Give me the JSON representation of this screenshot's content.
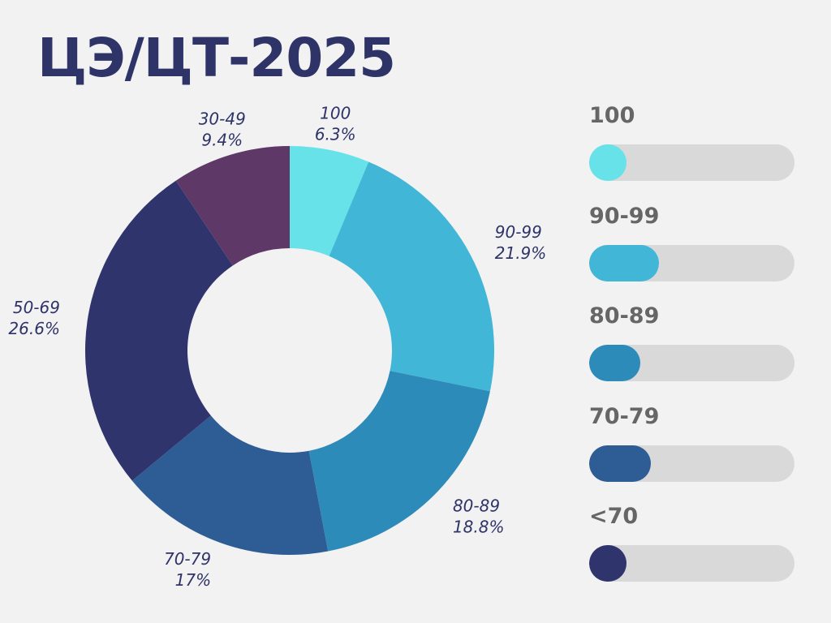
{
  "title": "ЦЭ/ЦТ-2025",
  "chart_data": [
    {
      "type": "pie",
      "variant": "donut",
      "series": [
        {
          "label": "100",
          "value_text": "6.3%",
          "value": 6.3,
          "color": "#68e2e9"
        },
        {
          "label": "90-99",
          "value_text": "21.9%",
          "value": 21.9,
          "color": "#42b6d6"
        },
        {
          "label": "80-89",
          "value_text": "18.8%",
          "value": 18.8,
          "color": "#2c8bb9"
        },
        {
          "label": "70-79",
          "value_text": "17%",
          "value": 17.0,
          "color": "#2e5d96"
        },
        {
          "label": "50-69",
          "value_text": "26.6%",
          "value": 26.6,
          "color": "#30346d"
        },
        {
          "label": "30-49",
          "value_text": "9.4%",
          "value": 9.4,
          "color": "#5e3867"
        }
      ]
    },
    {
      "type": "bar",
      "variant": "progress-bars",
      "track_color": "#d9d9d9",
      "items": [
        {
          "label": "100",
          "fill_fraction": 0.18,
          "color": "#68e2e9"
        },
        {
          "label": "90-99",
          "fill_fraction": 0.34,
          "color": "#42b6d6"
        },
        {
          "label": "80-89",
          "fill_fraction": 0.25,
          "color": "#2c8bb9"
        },
        {
          "label": "70-79",
          "fill_fraction": 0.3,
          "color": "#2e5d96"
        },
        {
          "label": "<70",
          "fill_fraction": 0.18,
          "color": "#30346d"
        }
      ]
    }
  ]
}
